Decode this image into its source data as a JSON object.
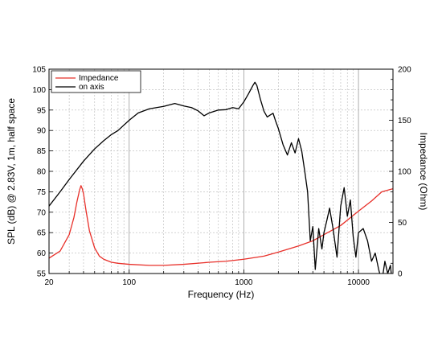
{
  "chart_data": {
    "type": "line",
    "xlabel": "Frequency (Hz)",
    "ylabel": "SPL (dB) @ 2.83V, 1m, half space",
    "y2label": "Impedance (Ohm)",
    "xscale": "log",
    "xlim": [
      20,
      20000
    ],
    "ylim": [
      55,
      105
    ],
    "y2lim": [
      0,
      200
    ],
    "x_tick_labels": [
      "20",
      "100",
      "1000",
      "10000"
    ],
    "x_ticks": [
      20,
      100,
      1000,
      10000
    ],
    "y_ticks": [
      55,
      60,
      65,
      70,
      75,
      80,
      85,
      90,
      95,
      100,
      105
    ],
    "y2_ticks": [
      0,
      50,
      100,
      150,
      200
    ],
    "grid": true,
    "legend": "top-left",
    "series": [
      {
        "name": "Impedance",
        "color": "#e8302a",
        "axis": "right",
        "x": [
          20,
          25,
          30,
          33,
          35,
          37,
          38,
          39,
          40,
          42,
          45,
          50,
          55,
          60,
          70,
          80,
          100,
          150,
          200,
          300,
          500,
          700,
          1000,
          1500,
          2000,
          3000,
          4000,
          5000,
          7000,
          10000,
          13000,
          16000,
          20000
        ],
        "y": [
          15,
          22,
          38,
          55,
          70,
          82,
          86,
          83,
          78,
          62,
          42,
          25,
          17,
          14,
          11,
          10,
          9,
          8,
          8,
          9,
          11,
          12,
          14,
          17,
          21,
          27,
          32,
          38,
          47,
          61,
          71,
          80,
          83
        ]
      },
      {
        "name": "on axis",
        "color": "#000000",
        "axis": "left",
        "x": [
          20,
          25,
          30,
          40,
          50,
          60,
          70,
          80,
          100,
          120,
          150,
          200,
          250,
          300,
          350,
          400,
          450,
          500,
          600,
          700,
          800,
          900,
          1000,
          1100,
          1200,
          1250,
          1300,
          1400,
          1500,
          1600,
          1700,
          1800,
          1900,
          2000,
          2200,
          2400,
          2600,
          2800,
          3000,
          3200,
          3400,
          3600,
          3800,
          4000,
          4200,
          4500,
          4800,
          5000,
          5300,
          5600,
          6000,
          6500,
          7000,
          7500,
          8000,
          8500,
          9000,
          9500,
          10000,
          11000,
          12000,
          13000,
          14000,
          15000,
          16000,
          17000,
          18000,
          19000,
          20000
        ],
        "y": [
          71.5,
          75,
          78,
          82.5,
          85.5,
          87.5,
          89,
          90,
          92.5,
          94.3,
          95.3,
          95.9,
          96.6,
          96,
          95.6,
          94.8,
          93.6,
          94.3,
          95,
          95.1,
          95.6,
          95.3,
          97,
          99,
          101,
          101.8,
          101,
          97.5,
          94.7,
          93.3,
          93.8,
          94.2,
          92.2,
          90.5,
          86.5,
          84,
          87,
          84.5,
          88,
          85,
          80,
          75,
          63,
          66.5,
          56,
          66,
          61,
          65,
          68,
          71,
          66,
          59,
          71.5,
          76,
          69,
          73,
          64,
          59,
          65,
          66,
          63,
          58,
          60,
          56,
          53,
          58,
          55,
          57,
          51
        ]
      }
    ]
  }
}
